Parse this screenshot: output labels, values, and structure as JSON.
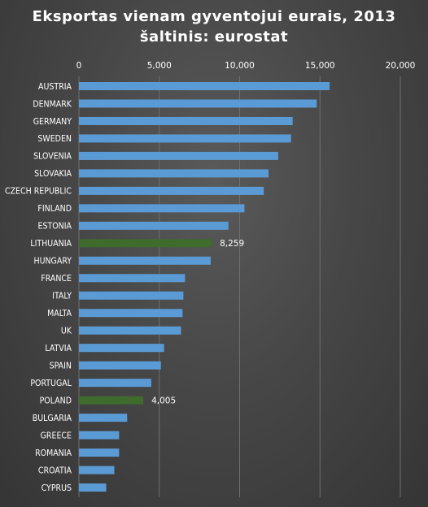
{
  "chart_data": {
    "type": "bar",
    "orientation": "horizontal",
    "title": "Eksportas vienam gyventojui  eurais, 2013",
    "subtitle": "šaltinis: eurostat",
    "xlim": [
      0,
      20000
    ],
    "x_ticks": [
      "0",
      "5,000",
      "10,000",
      "15,000",
      "20,000"
    ],
    "x_tick_values": [
      0,
      5000,
      10000,
      15000,
      20000
    ],
    "grid": true,
    "categories": [
      "AUSTRIA",
      "DENMARK",
      "GERMANY",
      "SWEDEN",
      "SLOVENIA",
      "SLOVAKIA",
      "CZECH REPUBLIC",
      "FINLAND",
      "ESTONIA",
      "LITHUANIA",
      "HUNGARY",
      "FRANCE",
      "ITALY",
      "MALTA",
      "UK",
      "LATVIA",
      "SPAIN",
      "PORTUGAL",
      "POLAND",
      "BULGARIA",
      "GREECE",
      "ROMANIA",
      "CROATIA",
      "CYPRUS"
    ],
    "values": [
      15600,
      14800,
      13300,
      13200,
      12400,
      11800,
      11500,
      10300,
      9300,
      8259,
      8200,
      6600,
      6500,
      6450,
      6350,
      5300,
      5100,
      4500,
      4005,
      3000,
      2500,
      2500,
      2200,
      1700
    ],
    "highlighted": [
      "LITHUANIA",
      "POLAND"
    ],
    "data_labels": {
      "LITHUANIA": "8,259",
      "POLAND": "4,005"
    },
    "colors": {
      "bar": "#5b9bd5",
      "highlight": "#3f6b2c",
      "text": "#ffffff",
      "grid": "#6f6f6f"
    }
  }
}
